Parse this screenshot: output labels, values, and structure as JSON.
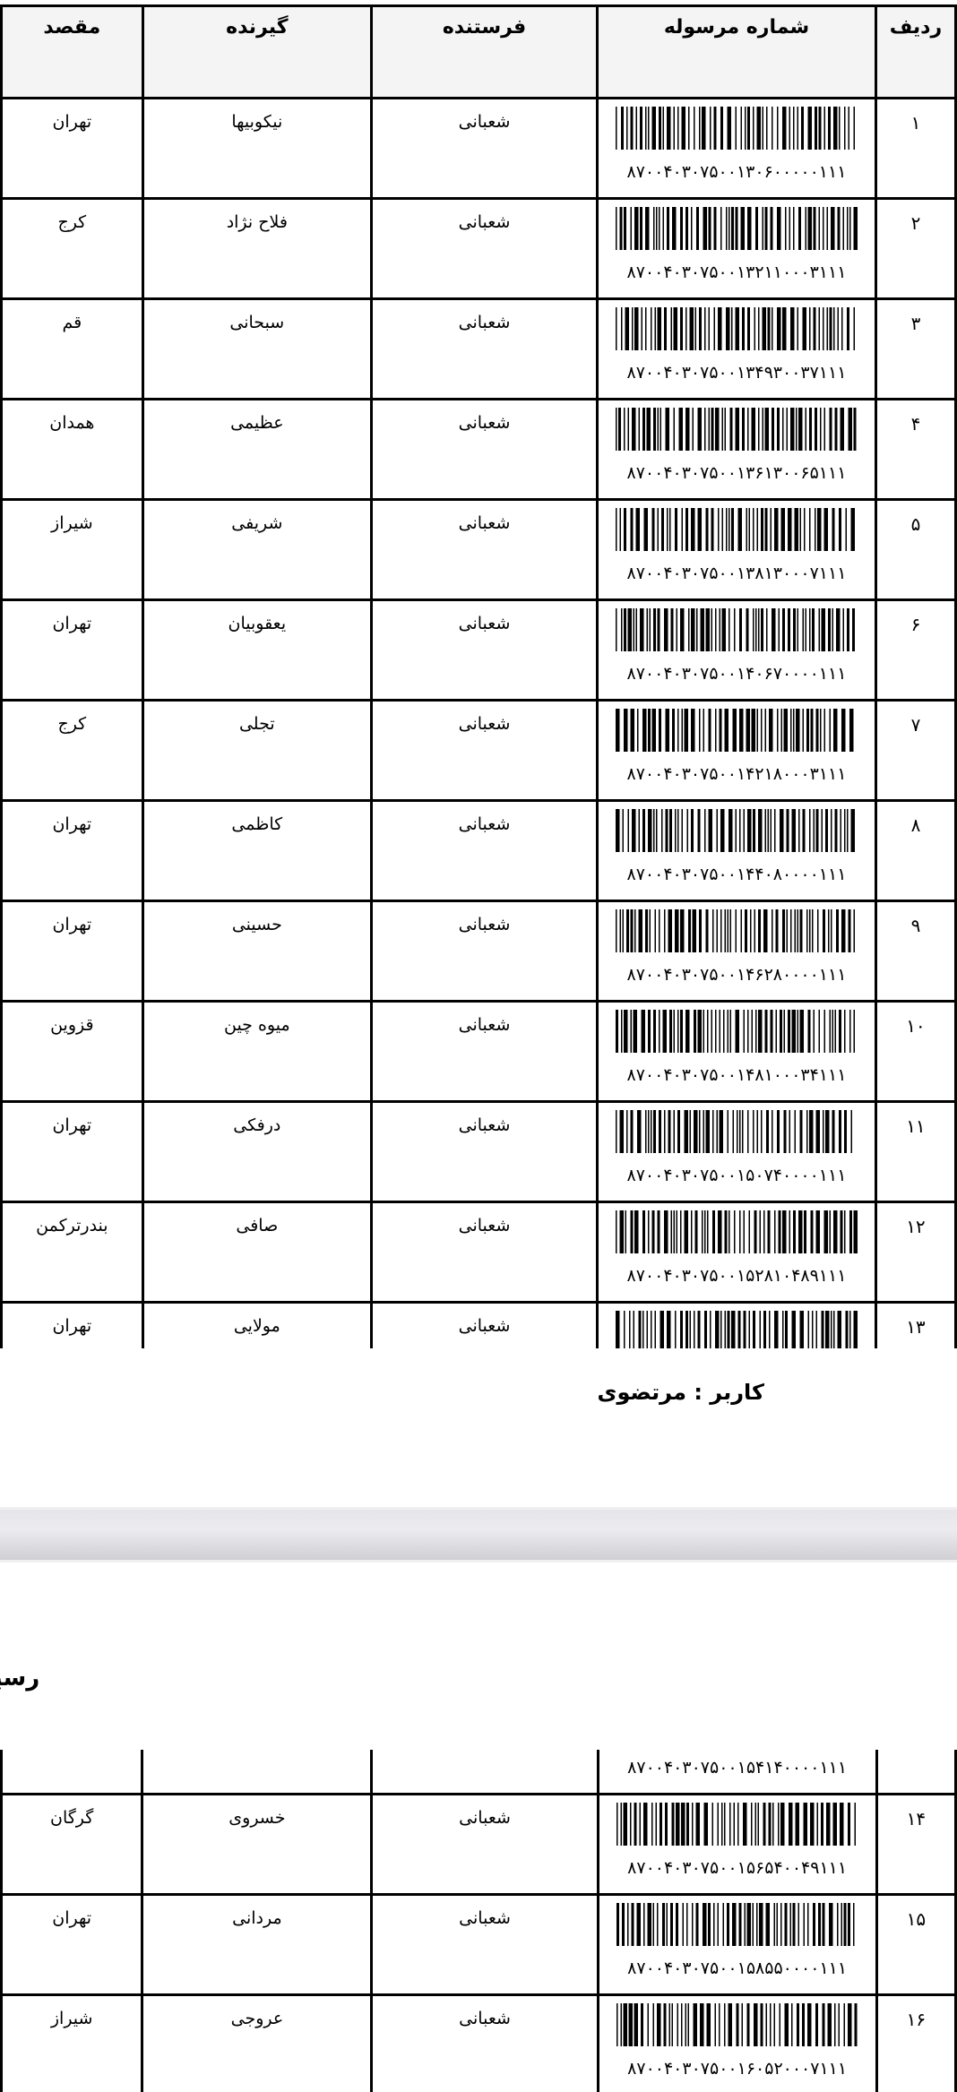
{
  "table": {
    "headers": {
      "index": "ردیف",
      "barcode": "شماره مرسوله",
      "sender": "فرستنده",
      "receiver": "گیرنده",
      "destination": "مقصد"
    },
    "rows": [
      {
        "index": "۱",
        "barcode": "۸۷۰۰۴۰۳۰۷۵۰۰۱۳۰۶۰۰۰۰۰۱۱۱",
        "sender": "شعبانی",
        "receiver": "نیکوبیها",
        "destination": "تهران"
      },
      {
        "index": "۲",
        "barcode": "۸۷۰۰۴۰۳۰۷۵۰۰۱۳۲۱۱۰۰۰۳۱۱۱",
        "sender": "شعبانی",
        "receiver": "فلاح نژاد",
        "destination": "کرج"
      },
      {
        "index": "۳",
        "barcode": "۸۷۰۰۴۰۳۰۷۵۰۰۱۳۴۹۳۰۰۳۷۱۱۱",
        "sender": "شعبانی",
        "receiver": "سبحانی",
        "destination": "قم"
      },
      {
        "index": "۴",
        "barcode": "۸۷۰۰۴۰۳۰۷۵۰۰۱۳۶۱۳۰۰۶۵۱۱۱",
        "sender": "شعبانی",
        "receiver": "عظیمی",
        "destination": "همدان"
      },
      {
        "index": "۵",
        "barcode": "۸۷۰۰۴۰۳۰۷۵۰۰۱۳۸۱۳۰۰۰۷۱۱۱",
        "sender": "شعبانی",
        "receiver": "شریفی",
        "destination": "شیراز"
      },
      {
        "index": "۶",
        "barcode": "۸۷۰۰۴۰۳۰۷۵۰۰۱۴۰۶۷۰۰۰۰۱۱۱",
        "sender": "شعبانی",
        "receiver": "یعقوبیان",
        "destination": "تهران"
      },
      {
        "index": "۷",
        "barcode": "۸۷۰۰۴۰۳۰۷۵۰۰۱۴۲۱۸۰۰۰۳۱۱۱",
        "sender": "شعبانی",
        "receiver": "تجلی",
        "destination": "کرج"
      },
      {
        "index": "۸",
        "barcode": "۸۷۰۰۴۰۳۰۷۵۰۰۱۴۴۰۸۰۰۰۰۱۱۱",
        "sender": "شعبانی",
        "receiver": "کاظمی",
        "destination": "تهران"
      },
      {
        "index": "۹",
        "barcode": "۸۷۰۰۴۰۳۰۷۵۰۰۱۴۶۲۸۰۰۰۰۱۱۱",
        "sender": "شعبانی",
        "receiver": "حسینی",
        "destination": "تهران"
      },
      {
        "index": "۱۰",
        "barcode": "۸۷۰۰۴۰۳۰۷۵۰۰۱۴۸۱۰۰۰۳۴۱۱۱",
        "sender": "شعبانی",
        "receiver": "میوه چین",
        "destination": "قزوین"
      },
      {
        "index": "۱۱",
        "barcode": "۸۷۰۰۴۰۳۰۷۵۰۰۱۵۰۷۴۰۰۰۰۱۱۱",
        "sender": "شعبانی",
        "receiver": "درفکی",
        "destination": "تهران"
      },
      {
        "index": "۱۲",
        "barcode": "۸۷۰۰۴۰۳۰۷۵۰۰۱۵۲۸۱۰۴۸۹۱۱۱",
        "sender": "شعبانی",
        "receiver": "صافی",
        "destination": "بندرترکمن"
      },
      {
        "index": "۱۳",
        "barcode": "۸۷۰۰۴۰۳۰۷۵۰۰۱۵۴۱۴۰۰۰۰۱۱۱",
        "sender": "شعبانی",
        "receiver": "مولایی",
        "destination": "تهران"
      },
      {
        "index": "۱۴",
        "barcode": "۸۷۰۰۴۰۳۰۷۵۰۰۱۵۶۵۴۰۰۴۹۱۱۱",
        "sender": "شعبانی",
        "receiver": "خسروی",
        "destination": "گرگان"
      },
      {
        "index": "۱۵",
        "barcode": "۸۷۰۰۴۰۳۰۷۵۰۰۱۵۸۵۵۰۰۰۰۱۱۱",
        "sender": "شعبانی",
        "receiver": "مردانی",
        "destination": "تهران"
      },
      {
        "index": "۱۶",
        "barcode": "۸۷۰۰۴۰۳۰۷۵۰۰۱۶۰۵۲۰۰۰۷۱۱۱",
        "sender": "شعبانی",
        "receiver": "عروجی",
        "destination": "شیراز"
      }
    ]
  },
  "footer": {
    "user_label": "کاربر : مرتضوی"
  },
  "next_page": {
    "title": "رسید"
  }
}
